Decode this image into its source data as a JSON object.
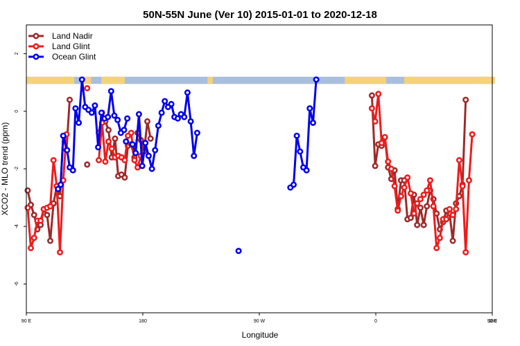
{
  "chart_data": {
    "type": "line",
    "title": "50N-55N June (Ver 10)   2015-01-01 to 2020-12-18",
    "xlabel": "Longitude",
    "ylabel": "XCO2 - MLO trend (ppm)",
    "xlim": [
      90,
      450
    ],
    "ylim": [
      -7,
      3
    ],
    "x_ticks": [
      {
        "value": 90,
        "label": "90 E"
      },
      {
        "value": 180,
        "label": "180"
      },
      {
        "value": 270,
        "label": "90 W"
      },
      {
        "value": 360,
        "label": "0"
      },
      {
        "value": 450,
        "label": "90 E"
      },
      {
        "value": 540,
        "label": "180"
      }
    ],
    "y_ticks": [
      {
        "value": 2,
        "label": "2"
      },
      {
        "value": 0,
        "label": "0"
      },
      {
        "value": -2,
        "label": "-2"
      },
      {
        "value": -4,
        "label": "-4"
      },
      {
        "value": -6,
        "label": "-6"
      }
    ],
    "grid": false,
    "legend": "top-left",
    "land_ocean_band": {
      "y_range": [
        0.95,
        1.2
      ],
      "land_color": "#f5d27a",
      "ocean_color": "#a9bfdd"
    },
    "series": [
      {
        "name": "Land Nadir",
        "color": "#9c2a2a",
        "segments": [
          [
            [
              91,
              -2.75
            ],
            [
              93.5,
              -3.25
            ],
            [
              96,
              -3.6
            ],
            [
              98.5,
              -4.1
            ],
            [
              101,
              -3.95
            ],
            [
              103.5,
              -3.4
            ],
            [
              106,
              -3.6
            ],
            [
              108.5,
              -4.5
            ],
            [
              111,
              -3.2
            ],
            [
              113.5,
              -2.6
            ],
            [
              116,
              -2.95
            ],
            [
              118.5,
              -0.85
            ],
            [
              121,
              -1.35
            ],
            [
              123.5,
              0.4
            ]
          ],
          [
            [
              137,
              -1.85
            ]
          ],
          [
            [
              146,
              -0.75
            ],
            [
              148.5,
              -0.05
            ],
            [
              151,
              -0.35
            ],
            [
              153.5,
              -0.65
            ],
            [
              156,
              -1.6
            ],
            [
              158.5,
              -0.95
            ],
            [
              161,
              -2.25
            ],
            [
              163.5,
              -2.2
            ],
            [
              166,
              -2.3
            ],
            [
              168.5,
              -1.2
            ],
            [
              171,
              -1.15
            ],
            [
              173.5,
              -1.6
            ],
            [
              176,
              -0.75
            ],
            [
              178.5,
              -1.0
            ],
            [
              181,
              -1.4
            ],
            [
              183.5,
              -0.35
            ],
            [
              186,
              -0.95
            ]
          ],
          [
            [
              357,
              0.55
            ],
            [
              359.5,
              -1.9
            ],
            [
              362,
              -1.15
            ],
            [
              364.5,
              -1.2
            ],
            [
              367,
              -0.9
            ],
            [
              369.5,
              -1.95
            ],
            [
              372,
              -2.35
            ],
            [
              374.5,
              -2.05
            ],
            [
              377,
              -3.4
            ],
            [
              379.5,
              -2.4
            ],
            [
              382,
              -2.4
            ],
            [
              384.5,
              -3.75
            ],
            [
              387,
              -3.7
            ],
            [
              389.5,
              -2.9
            ],
            [
              392,
              -3.95
            ],
            [
              394.5,
              -3.35
            ],
            [
              397,
              -3.95
            ],
            [
              399.5,
              -3.3
            ],
            [
              402,
              -2.75
            ],
            [
              404.5,
              -3.05
            ],
            [
              407,
              -3.55
            ],
            [
              409.5,
              -4.1
            ],
            [
              412,
              -3.85
            ],
            [
              414.5,
              -3.45
            ],
            [
              417,
              -3.55
            ],
            [
              419.5,
              -4.5
            ],
            [
              422,
              -3.2
            ],
            [
              424.5,
              -2.95
            ],
            [
              427,
              -2.55
            ],
            [
              429.5,
              0.4
            ]
          ]
        ]
      },
      {
        "name": "Land Glint",
        "color": "#ee1c1c",
        "segments": [
          [
            [
              91,
              -3.35
            ],
            [
              93.5,
              -4.75
            ],
            [
              96,
              -4.4
            ],
            [
              98.5,
              -3.8
            ],
            [
              101,
              -3.8
            ],
            [
              103.5,
              -3.4
            ],
            [
              106,
              -3.35
            ],
            [
              108.5,
              -3.3
            ],
            [
              111,
              -1.7
            ],
            [
              113.5,
              -2.6
            ],
            [
              116,
              -4.9
            ],
            [
              118.5,
              -2.4
            ],
            [
              121,
              -0.8
            ]
          ],
          [
            [
              137,
              0.8
            ]
          ],
          [
            [
              146,
              -1.7
            ],
            [
              148.5,
              -0.4
            ],
            [
              151,
              -1.75
            ],
            [
              153.5,
              -1.05
            ],
            [
              156,
              -1.3
            ],
            [
              158.5,
              -1.6
            ],
            [
              161,
              -1.55
            ],
            [
              163.5,
              -1.6
            ],
            [
              166,
              -1.7
            ],
            [
              168.5,
              -0.85
            ],
            [
              171,
              -0.75
            ],
            [
              173.5,
              -1.7
            ],
            [
              176,
              -1.95
            ],
            [
              178.5,
              -1.55
            ]
          ],
          [
            [
              357,
              0.1
            ],
            [
              359.5,
              -0.35
            ],
            [
              362,
              0.6
            ],
            [
              364.5,
              -1.1
            ],
            [
              367,
              -0.9
            ],
            [
              369.5,
              -1.75
            ],
            [
              372,
              -2.0
            ],
            [
              374.5,
              -2.6
            ],
            [
              377,
              -3.45
            ],
            [
              379.5,
              -2.95
            ],
            [
              382,
              -2.65
            ],
            [
              384.5,
              -2.3
            ],
            [
              387,
              -2.85
            ],
            [
              389.5,
              -3.55
            ],
            [
              392,
              -3.2
            ],
            [
              394.5,
              -3.05
            ],
            [
              397,
              -2.9
            ],
            [
              399.5,
              -2.75
            ],
            [
              402,
              -2.4
            ],
            [
              404.5,
              -3.3
            ],
            [
              407,
              -4.75
            ],
            [
              409.5,
              -4.4
            ],
            [
              412,
              -3.75
            ],
            [
              414.5,
              -3.75
            ],
            [
              417,
              -3.4
            ],
            [
              419.5,
              -3.6
            ],
            [
              422,
              -3.4
            ],
            [
              424.5,
              -1.7
            ],
            [
              427,
              -2.6
            ],
            [
              429.5,
              -4.9
            ],
            [
              432,
              -2.4
            ],
            [
              434.5,
              -0.8
            ]
          ]
        ]
      },
      {
        "name": "Ocean Glint",
        "color": "#0000ee",
        "segments": [
          [
            [
              114.5,
              -2.7
            ],
            [
              116.5,
              -2.55
            ],
            [
              118.5,
              -0.85
            ],
            [
              121.5,
              -1.35
            ],
            [
              123.5,
              -1.95
            ],
            [
              126,
              -2.05
            ],
            [
              128,
              0.1
            ],
            [
              130.5,
              -0.4
            ],
            [
              133,
              1.1
            ],
            [
              135.5,
              0.15
            ],
            [
              138,
              0.05
            ],
            [
              140.5,
              -0.05
            ],
            [
              143,
              0.2
            ],
            [
              145.5,
              -1.25
            ],
            [
              148,
              -0.05
            ],
            [
              150.5,
              -0.25
            ],
            [
              153,
              -0.2
            ],
            [
              155.5,
              0.7
            ],
            [
              158,
              -0.15
            ],
            [
              160.5,
              -0.3
            ],
            [
              163,
              -0.75
            ],
            [
              165.5,
              -0.65
            ],
            [
              168,
              -0.25
            ]
          ],
          [
            [
              167,
              -1.05
            ]
          ],
          [
            [
              172,
              -1.15
            ],
            [
              174.5,
              -1.45
            ],
            [
              177,
              -0.1
            ],
            [
              179.5,
              -1.9
            ],
            [
              182,
              -1.1
            ],
            [
              184.5,
              -1.55
            ],
            [
              187,
              -2.0
            ],
            [
              189.5,
              -1.35
            ],
            [
              192,
              -0.5
            ],
            [
              194.5,
              -0.05
            ],
            [
              197,
              0.35
            ],
            [
              199.5,
              0.15
            ],
            [
              202,
              0.25
            ],
            [
              204.5,
              -0.2
            ],
            [
              207,
              -0.25
            ],
            [
              209.5,
              -0.1
            ],
            [
              212,
              -0.2
            ],
            [
              214.5,
              0.65
            ],
            [
              217,
              -0.35
            ],
            [
              219.5,
              -1.55
            ],
            [
              222,
              -0.75
            ]
          ],
          [
            [
              254,
              -4.85
            ]
          ],
          [
            [
              294,
              -2.65
            ],
            [
              296.5,
              -2.55
            ],
            [
              299,
              -0.85
            ],
            [
              301.5,
              -1.4
            ],
            [
              304,
              -1.95
            ],
            [
              306.5,
              -2.05
            ],
            [
              309,
              0.1
            ],
            [
              311.5,
              -0.4
            ],
            [
              314,
              1.1
            ]
          ]
        ]
      }
    ]
  }
}
